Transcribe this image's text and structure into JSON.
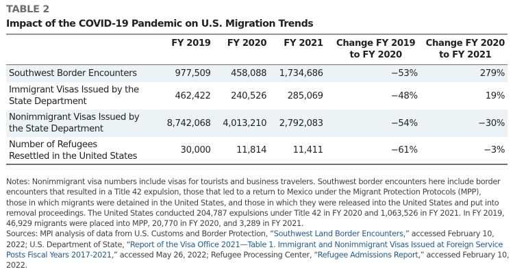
{
  "table_label": "TABLE 2",
  "title": "Impact of the COVID-19 Pandemic on U.S. Migration Trends",
  "columns": [
    "",
    "FY 2019",
    "FY 2020",
    "FY 2021",
    "Change FY 2019 to FY 2020",
    "Change FY 2020 to FY 2021"
  ],
  "column_lines": {
    "c4_line1": "Change FY 2019",
    "c4_line2": "to FY 2020",
    "c5_line1": "Change FY 2020",
    "c5_line2": "to FY 2021"
  },
  "rows": [
    {
      "label": "Southwest Border Encounters",
      "fy2019": "977,509",
      "fy2020": "458,088",
      "fy2021": "1,734,686",
      "chg1920": "−53%",
      "chg2021": "279%"
    },
    {
      "label_line1": "Immigrant Visas Issued by the",
      "label_line2": "State Department",
      "fy2019": "462,422",
      "fy2020": "240,526",
      "fy2021": "285,069",
      "chg1920": "−48%",
      "chg2021": "19%"
    },
    {
      "label_line1": "Nonimmigrant Visas Issued by",
      "label_line2": "the State Department",
      "fy2019": "8,742,068",
      "fy2020": "4,013,210",
      "fy2021": "2,792,083",
      "chg1920": "−54%",
      "chg2021": "−30%"
    },
    {
      "label_line1": "Number of Refugees",
      "label_line2": "Resettled in the United States",
      "fy2019": "30,000",
      "fy2020": "11,814",
      "fy2021": "11,411",
      "chg1920": "−61%",
      "chg2021": "−3%"
    }
  ],
  "notes": {
    "line1": "Notes: Nonimmigrant visa numbers include visas for tourists and business travelers. Southwest border encounters here include border",
    "line2": "encounters that resulted in a Title 42 expulsion, those that led to a return to Mexico under the Migrant Protection Protocols (MPP),",
    "line3": "those in which migrants were detained in the United States, and those in which they were released into the United States and put into",
    "line4": "removal proceedings. The United States conducted 204,787 expulsions under Title 42 in FY 2020 and 1,063,526 in FY 2021. In FY 2019,",
    "line5": "46,929 migrants were placed into MPP, 20,770 in FY 2020, and 3,289 in FY 2021."
  },
  "sources": {
    "prefix": "Sources: MPI analysis of data from U.S. Customs and Border Protection, “",
    "link1": "Southwest Land Border Encounters",
    "after_link1_line": ",” accessed February 10,",
    "line2_prefix": "2022; U.S. Department of State, “",
    "link2_part1": "Report of the Visa Office 2021—Table 1. Immigrant and Nonimmigrant Visas Issued at Foreign Service",
    "link2_part2": "Posts Fiscal Years 2017-2021",
    "after_link2": ",” accessed May 26, 2022; Refugee Processing Center, “",
    "link3": "Refugee Admissions Report",
    "after_link3": ",” accessed February 10,",
    "line4": "2022."
  },
  "colors": {
    "shade": "#ebf3f7",
    "link": "#1f5d95",
    "label_gray": "#6d6e71"
  }
}
